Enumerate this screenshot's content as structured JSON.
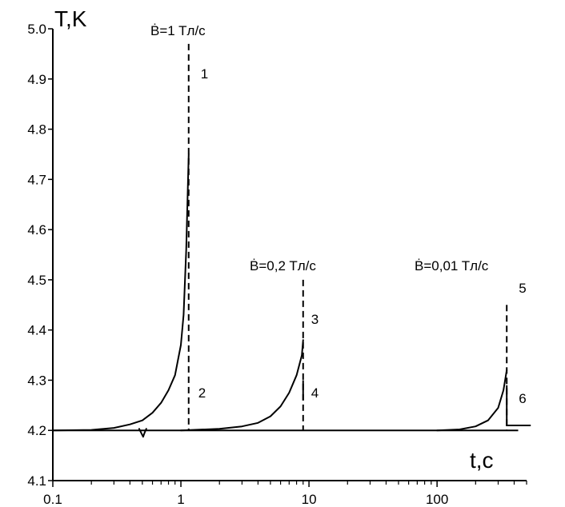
{
  "chart_data": {
    "type": "line",
    "title": "",
    "xlabel": "t,c",
    "ylabel": "T,K",
    "x_scale": "log",
    "xlim": [
      0.1,
      500
    ],
    "ylim": [
      4.1,
      5.0
    ],
    "x_ticks": [
      {
        "value": 0.1,
        "label": "0.1"
      },
      {
        "value": 1,
        "label": "1"
      },
      {
        "value": 10,
        "label": "10"
      },
      {
        "value": 100,
        "label": "100"
      }
    ],
    "y_ticks": [
      {
        "value": 4.1,
        "label": "4.1"
      },
      {
        "value": 4.2,
        "label": "4.2"
      },
      {
        "value": 4.3,
        "label": "4.3"
      },
      {
        "value": 4.4,
        "label": "4.4"
      },
      {
        "value": 4.5,
        "label": "4.5"
      },
      {
        "value": 4.6,
        "label": "4.6"
      },
      {
        "value": 4.7,
        "label": "4.7"
      },
      {
        "value": 4.8,
        "label": "4.8"
      },
      {
        "value": 4.9,
        "label": "4.9"
      },
      {
        "value": 5.0,
        "label": "5.0"
      }
    ],
    "grid": false,
    "series": [
      {
        "rate_label": "Ḃ=1  Tл/c",
        "points": [
          [
            0.1,
            4.2
          ],
          [
            0.2,
            4.201
          ],
          [
            0.3,
            4.205
          ],
          [
            0.4,
            4.212
          ],
          [
            0.5,
            4.22
          ],
          [
            0.6,
            4.235
          ],
          [
            0.7,
            4.255
          ],
          [
            0.8,
            4.28
          ],
          [
            0.9,
            4.31
          ],
          [
            1.0,
            4.37
          ],
          [
            1.05,
            4.43
          ],
          [
            1.1,
            4.56
          ],
          [
            1.15,
            4.75
          ]
        ],
        "dashed_x": 1.15,
        "dashed_top": 4.97,
        "dashed_bottom": 4.2,
        "marker_top": "1",
        "marker_bottom": "2"
      },
      {
        "rate_label": "Ḃ=0,2  Tл/c",
        "points": [
          [
            1.0,
            4.2
          ],
          [
            2.0,
            4.203
          ],
          [
            3.0,
            4.208
          ],
          [
            4.0,
            4.215
          ],
          [
            5.0,
            4.228
          ],
          [
            6.0,
            4.248
          ],
          [
            7.0,
            4.275
          ],
          [
            8.0,
            4.31
          ],
          [
            8.8,
            4.35
          ],
          [
            9.0,
            4.38
          ]
        ],
        "dashed_x": 9.0,
        "dashed_top": 4.5,
        "dashed_bottom": 4.2,
        "marker_top": "3",
        "marker_bottom": "4"
      },
      {
        "rate_label": "Ḃ=0,01  Tл/c",
        "points": [
          [
            100,
            4.2
          ],
          [
            150,
            4.202
          ],
          [
            200,
            4.208
          ],
          [
            250,
            4.22
          ],
          [
            300,
            4.245
          ],
          [
            330,
            4.28
          ],
          [
            350,
            4.32
          ]
        ],
        "dashed_x": 350,
        "dashed_top": 4.45,
        "dashed_bottom": 4.2,
        "marker_top": "5",
        "marker_bottom": "6"
      }
    ],
    "baseline": {
      "x_from": 0.1,
      "x_to": 430,
      "y": 4.2
    }
  }
}
